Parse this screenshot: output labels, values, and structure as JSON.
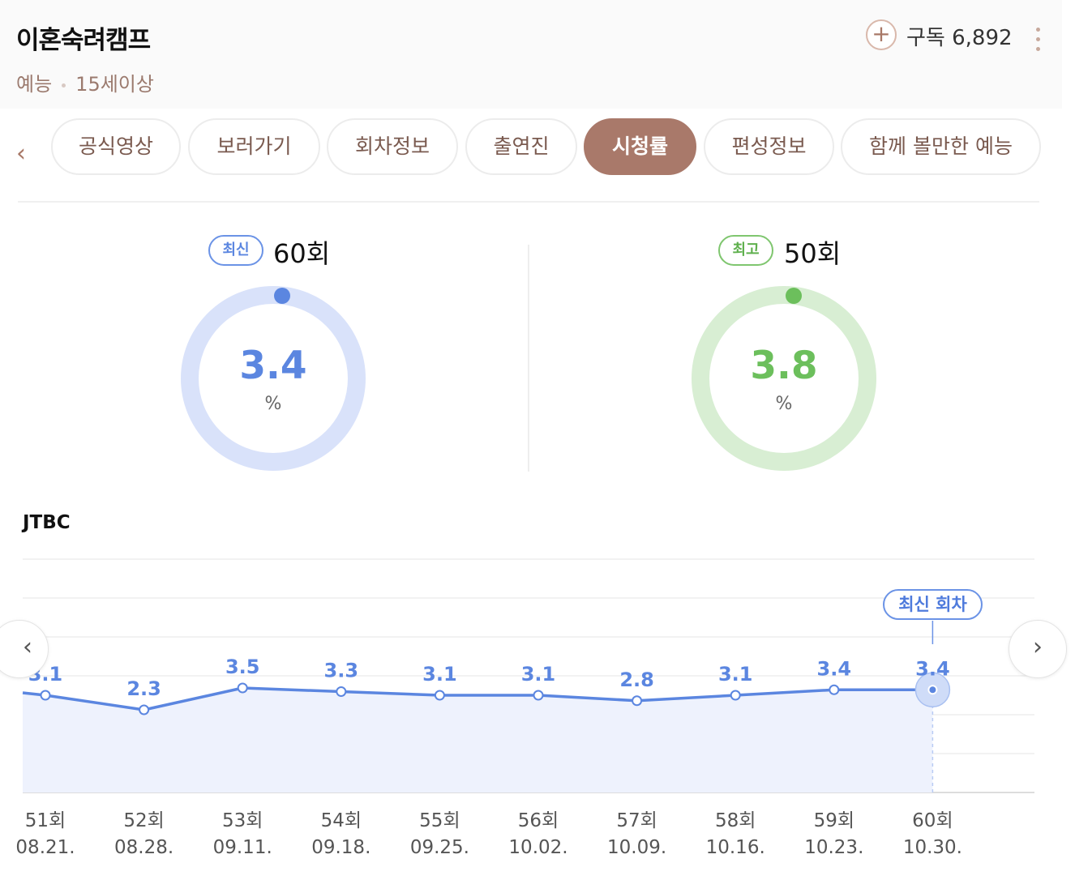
{
  "header": {
    "title": "이혼숙려캠프",
    "genre": "예능",
    "age_rating": "15세이상",
    "subscribe_label": "구독 6,892",
    "plus_glyph": "+"
  },
  "tabs": {
    "prev_glyph": "‹",
    "items": [
      "공식영상",
      "보러가기",
      "회차정보",
      "출연진",
      "시청률",
      "편성정보",
      "함께 볼만한 예능"
    ],
    "active": "시청률"
  },
  "ratings": {
    "latest": {
      "badge": "최신",
      "episode": "60회",
      "value": "3.4",
      "unit": "%",
      "color": "#5b86e0",
      "track": "#d9e2fa"
    },
    "best": {
      "badge": "최고",
      "episode": "50회",
      "value": "3.8",
      "unit": "%",
      "color": "#6cbf5c",
      "track": "#d8eed3"
    }
  },
  "chart_title": "JTBC",
  "chart_nav": {
    "prev": "‹",
    "next": "›"
  },
  "latest_tag": "최신 회차",
  "chart_data": {
    "type": "line",
    "series_name": "JTBC",
    "categories": [
      "51회",
      "52회",
      "53회",
      "54회",
      "55회",
      "56회",
      "57회",
      "58회",
      "59회",
      "60회"
    ],
    "dates": [
      "08.21.",
      "08.28.",
      "09.11.",
      "09.18.",
      "09.25.",
      "10.02.",
      "10.09.",
      "10.16.",
      "10.23.",
      "10.30."
    ],
    "values": [
      3.1,
      2.3,
      3.5,
      3.3,
      3.1,
      3.1,
      2.8,
      3.1,
      3.4,
      3.4
    ],
    "labels": [
      "3.1",
      "2.3",
      "3.5",
      "3.3",
      "3.1",
      "3.1",
      "2.8",
      "3.1",
      "3.4",
      "3.4"
    ],
    "highlight_index": 9,
    "line_color": "#5b86e0",
    "fill_color": "#eef2fd"
  }
}
